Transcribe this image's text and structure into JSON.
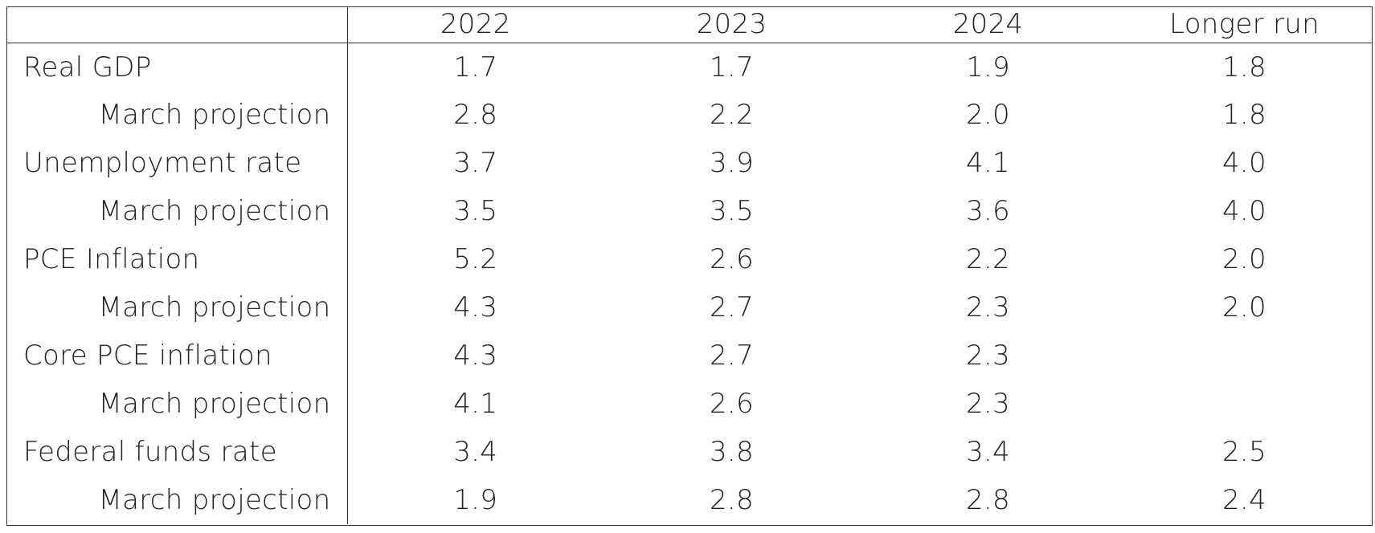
{
  "table": {
    "columns": [
      "2022",
      "2023",
      "2024",
      "Longer run"
    ],
    "rows": [
      {
        "label": "Real GDP",
        "type": "main",
        "values": [
          "1.7",
          "1.7",
          "1.9",
          "1.8"
        ]
      },
      {
        "label": "March projection",
        "type": "sub",
        "values": [
          "2.8",
          "2.2",
          "2.0",
          "1.8"
        ]
      },
      {
        "label": "Unemployment rate",
        "type": "main",
        "values": [
          "3.7",
          "3.9",
          "4.1",
          "4.0"
        ]
      },
      {
        "label": "March projection",
        "type": "sub",
        "values": [
          "3.5",
          "3.5",
          "3.6",
          "4.0"
        ]
      },
      {
        "label": "PCE Inflation",
        "type": "main",
        "values": [
          "5.2",
          "2.6",
          "2.2",
          "2.0"
        ]
      },
      {
        "label": "March projection",
        "type": "sub",
        "values": [
          "4.3",
          "2.7",
          "2.3",
          "2.0"
        ]
      },
      {
        "label": "Core PCE inflation",
        "type": "main",
        "values": [
          "4.3",
          "2.7",
          "2.3",
          ""
        ]
      },
      {
        "label": "March projection",
        "type": "sub",
        "values": [
          "4.1",
          "2.6",
          "2.3",
          ""
        ]
      },
      {
        "label": "Federal funds rate",
        "type": "main",
        "values": [
          "3.4",
          "3.8",
          "3.4",
          "2.5"
        ]
      },
      {
        "label": "March projection",
        "type": "sub",
        "values": [
          "1.9",
          "2.8",
          "2.8",
          "2.4"
        ]
      }
    ]
  },
  "colors": {
    "text": "#222222",
    "rule": "#333333",
    "background": "#ffffff"
  }
}
